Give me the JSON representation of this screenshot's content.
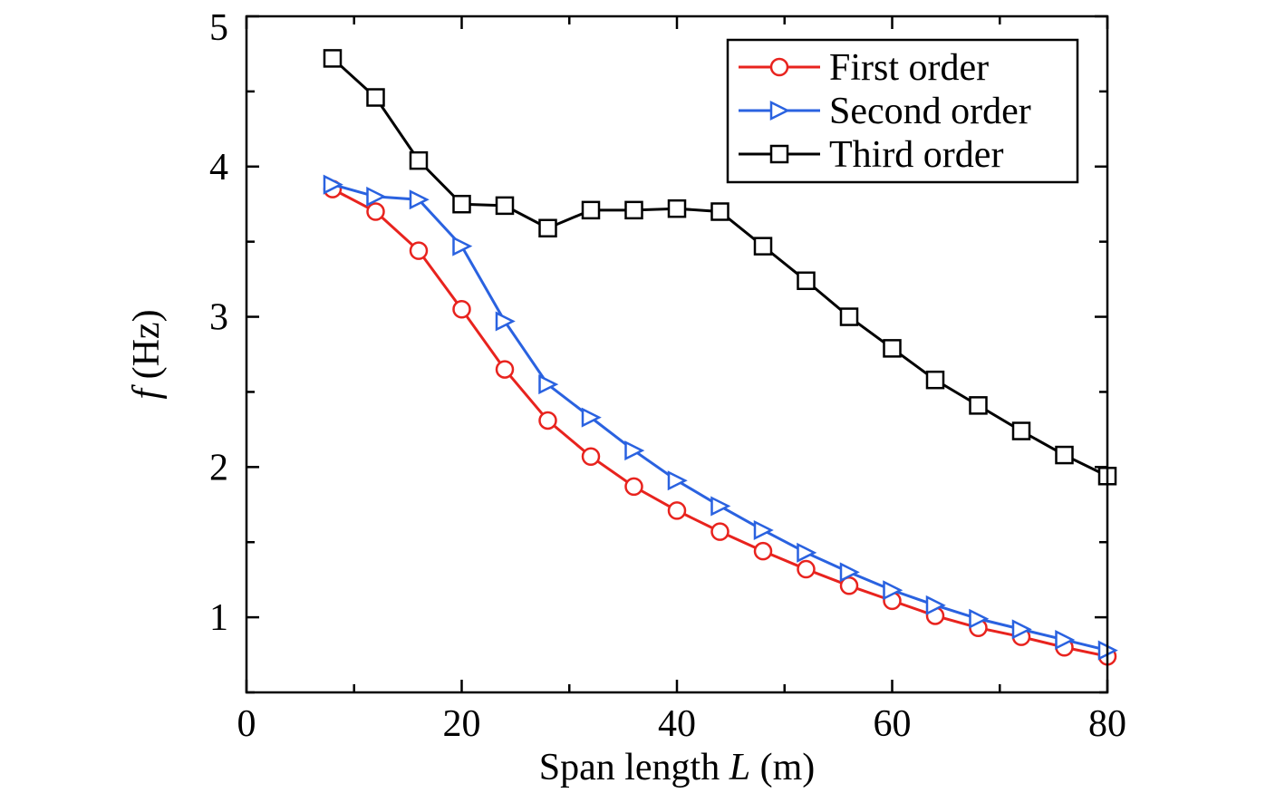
{
  "chart_data": {
    "type": "line",
    "xlabel": {
      "prefix": "Span length ",
      "var": "L",
      "suffix": " (m)"
    },
    "ylabel": {
      "var": "f",
      "suffix": " (Hz)"
    },
    "xlim": [
      0,
      80
    ],
    "ylim": [
      0.5,
      5
    ],
    "xticks": [
      0,
      20,
      40,
      60,
      80
    ],
    "yticks": [
      1,
      2,
      3,
      4,
      5
    ],
    "x_minor_ticks": [
      10,
      30,
      50,
      70
    ],
    "y_minor_ticks": [
      0.5,
      1.5,
      2.5,
      3.5,
      4.5
    ],
    "grid": false,
    "legend_position": "top-right",
    "x": [
      8,
      12,
      16,
      20,
      24,
      28,
      32,
      36,
      40,
      44,
      48,
      52,
      56,
      60,
      64,
      68,
      72,
      76,
      80
    ],
    "series": [
      {
        "name": "First order",
        "color": "#e8231e",
        "marker": "circle",
        "values": [
          3.85,
          3.7,
          3.44,
          3.05,
          2.65,
          2.31,
          2.07,
          1.87,
          1.71,
          1.57,
          1.44,
          1.32,
          1.21,
          1.11,
          1.01,
          0.93,
          0.87,
          0.8,
          0.74
        ]
      },
      {
        "name": "Second order",
        "color": "#2a62e0",
        "marker": "triangle-right",
        "values": [
          3.88,
          3.8,
          3.78,
          3.47,
          2.97,
          2.55,
          2.33,
          2.11,
          1.91,
          1.74,
          1.58,
          1.43,
          1.3,
          1.18,
          1.08,
          0.99,
          0.92,
          0.85,
          0.78
        ]
      },
      {
        "name": "Third order",
        "color": "#000000",
        "marker": "square",
        "values": [
          4.72,
          4.46,
          4.04,
          3.75,
          3.74,
          3.59,
          3.71,
          3.71,
          3.72,
          3.7,
          3.47,
          3.24,
          3.0,
          2.79,
          2.58,
          2.41,
          2.24,
          2.08,
          1.94
        ]
      }
    ]
  }
}
